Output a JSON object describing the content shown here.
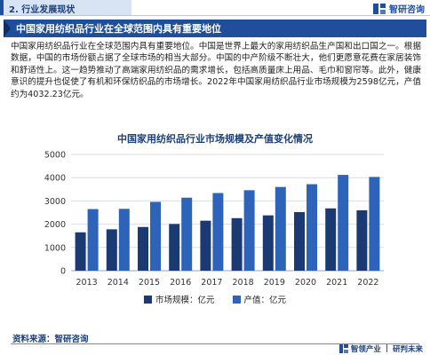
{
  "header": {
    "section_label": "2. 行业发展现状",
    "brand_name": "智研咨询"
  },
  "headline": "中国家用纺织品行业在全球范围内具有重要地位",
  "paragraph": "中国家用纺织品行业在全球范围内具有重要地位。中国是世界上最大的家用纺织品生产国和出口国之一。根据数据，中国的市场份额占据了全球市场的相当大部分。中国的中产阶级不断壮大，他们更愿意花费在家居装饰和舒适性上。这一趋势推动了高端家用纺织品的需求增长，包括高质量床上用品、毛巾和窗帘等。此外，健康意识的提升也促使了有机和环保纺织品的市场增长。2022年中国家用纺织品行业市场规模为2598亿元，产值约为4032.23亿元。",
  "chart_data": {
    "type": "bar",
    "title": "中国家用纺织品行业市场规模及产值变化情况",
    "categories": [
      "2013",
      "2014",
      "2015",
      "2016",
      "2017",
      "2018",
      "2019",
      "2020",
      "2021",
      "2022"
    ],
    "series": [
      {
        "name": "市场规模：亿元",
        "color": "#1b3a73",
        "values": [
          1650,
          1780,
          1880,
          2010,
          2150,
          2260,
          2380,
          2520,
          2680,
          2598
        ]
      },
      {
        "name": "产值：亿元",
        "color": "#2d63b8",
        "values": [
          2650,
          2660,
          2960,
          3140,
          3340,
          3460,
          3600,
          3720,
          4120,
          4032.23
        ]
      }
    ],
    "yticks": [
      0,
      1000,
      2000,
      3000,
      4000,
      5000
    ],
    "ylim": [
      0,
      5000
    ],
    "grid": true,
    "legend_position": "bottom"
  },
  "footer": {
    "source": "资料来源：智研咨询",
    "slogan_left": "智领产业",
    "slogan_right": "研判未来"
  }
}
